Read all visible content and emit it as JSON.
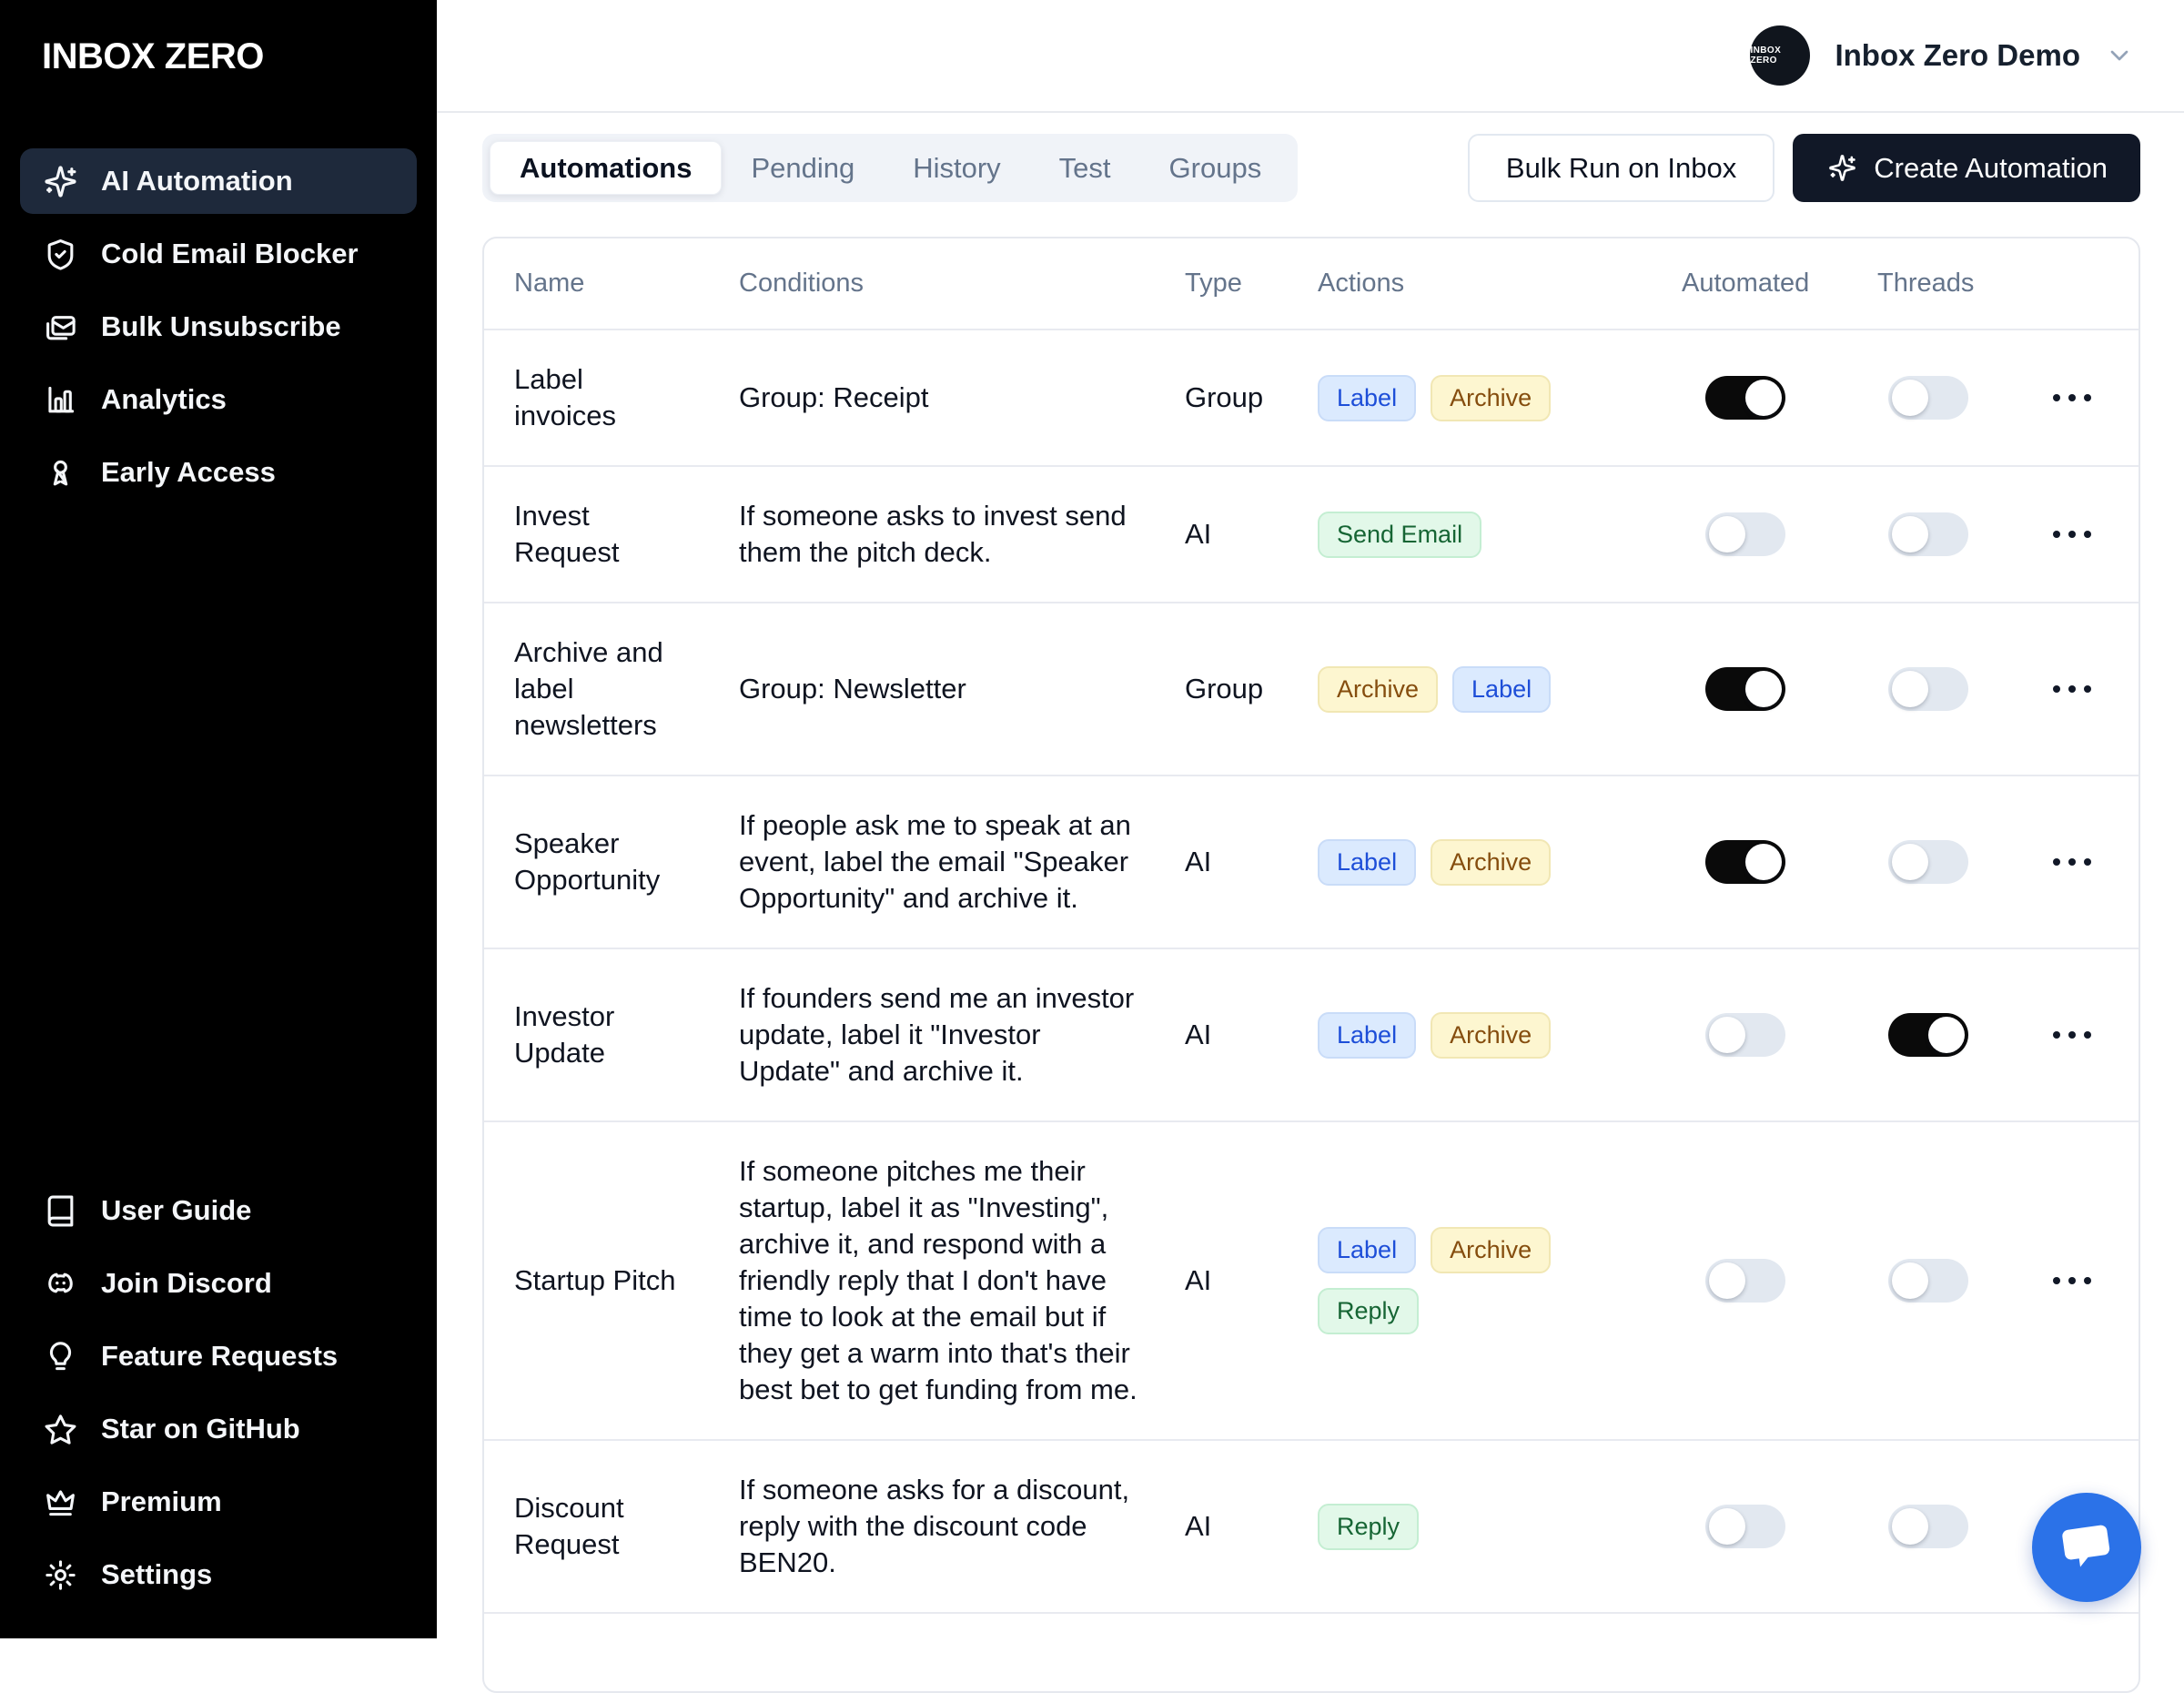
{
  "app": {
    "logo": "INBOX ZERO"
  },
  "sidebar": {
    "main_items": [
      {
        "label": "AI Automation",
        "icon": "sparkles",
        "active": true
      },
      {
        "label": "Cold Email Blocker",
        "icon": "shield-check",
        "active": false
      },
      {
        "label": "Bulk Unsubscribe",
        "icon": "mails",
        "active": false
      },
      {
        "label": "Analytics",
        "icon": "bar-chart",
        "active": false
      },
      {
        "label": "Early Access",
        "icon": "ribbon",
        "active": false
      }
    ],
    "footer_items": [
      {
        "label": "User Guide",
        "icon": "book",
        "active": false
      },
      {
        "label": "Join Discord",
        "icon": "discord",
        "active": false
      },
      {
        "label": "Feature Requests",
        "icon": "lightbulb",
        "active": false
      },
      {
        "label": "Star on GitHub",
        "icon": "star",
        "active": false
      },
      {
        "label": "Premium",
        "icon": "crown",
        "active": false
      },
      {
        "label": "Settings",
        "icon": "gear",
        "active": false
      }
    ]
  },
  "header": {
    "account_name": "Inbox Zero Demo",
    "avatar_text": "INBOX ZERO",
    "chevron_icon": "chevron-down"
  },
  "toolbar": {
    "tabs": [
      {
        "label": "Automations",
        "active": true
      },
      {
        "label": "Pending",
        "active": false
      },
      {
        "label": "History",
        "active": false
      },
      {
        "label": "Test",
        "active": false
      },
      {
        "label": "Groups",
        "active": false
      }
    ],
    "bulk_run_label": "Bulk Run on Inbox",
    "create_label": "Create Automation",
    "create_icon": "sparkles"
  },
  "table": {
    "columns": [
      "Name",
      "Conditions",
      "Type",
      "Actions",
      "Automated",
      "Threads"
    ],
    "rows": [
      {
        "name": "Label invoices",
        "conditions": "Group: Receipt",
        "type": "Group",
        "actions": [
          {
            "label": "Label",
            "color": "blue"
          },
          {
            "label": "Archive",
            "color": "yellow"
          }
        ],
        "automated": true,
        "threads": false
      },
      {
        "name": "Invest Request",
        "conditions": "If someone asks to invest send them the pitch deck.",
        "type": "AI",
        "actions": [
          {
            "label": "Send Email",
            "color": "green"
          }
        ],
        "automated": false,
        "threads": false
      },
      {
        "name": "Archive and label newsletters",
        "conditions": "Group: Newsletter",
        "type": "Group",
        "actions": [
          {
            "label": "Archive",
            "color": "yellow"
          },
          {
            "label": "Label",
            "color": "blue"
          }
        ],
        "automated": true,
        "threads": false
      },
      {
        "name": "Speaker Opportunity",
        "conditions": "If people ask me to speak at an event, label the email \"Speaker Opportunity\" and archive it.",
        "type": "AI",
        "actions": [
          {
            "label": "Label",
            "color": "blue"
          },
          {
            "label": "Archive",
            "color": "yellow"
          }
        ],
        "automated": true,
        "threads": false
      },
      {
        "name": "Investor Update",
        "conditions": "If founders send me an investor update, label it \"Investor Update\" and archive it.",
        "type": "AI",
        "actions": [
          {
            "label": "Label",
            "color": "blue"
          },
          {
            "label": "Archive",
            "color": "yellow"
          }
        ],
        "automated": false,
        "threads": true
      },
      {
        "name": "Startup Pitch",
        "conditions": "If someone pitches me their startup, label it as \"Investing\", archive it, and respond with a friendly reply that I don't have time to look at the email but if they get a warm into that's their best bet to get funding from me.",
        "type": "AI",
        "actions": [
          {
            "label": "Label",
            "color": "blue"
          },
          {
            "label": "Archive",
            "color": "yellow"
          },
          {
            "label": "Reply",
            "color": "green"
          }
        ],
        "automated": false,
        "threads": false
      },
      {
        "name": "Discount Request",
        "conditions": "If someone asks for a discount, reply with the discount code BEN20.",
        "type": "AI",
        "actions": [
          {
            "label": "Reply",
            "color": "green"
          }
        ],
        "automated": false,
        "threads": false
      }
    ]
  },
  "chat": {
    "icon": "chat-bubble"
  },
  "colors": {
    "sidebar_bg": "#000000",
    "sidebar_active_bg": "#1e293b",
    "primary_button_bg": "#111827",
    "toggle_on": "#0a0a0a",
    "toggle_off_track": "#e2e8f0",
    "chat_blue": "#2b72e8",
    "badge_blue_text": "#1d4ed8",
    "badge_yellow_text": "#854d0e",
    "badge_green_text": "#166534"
  }
}
